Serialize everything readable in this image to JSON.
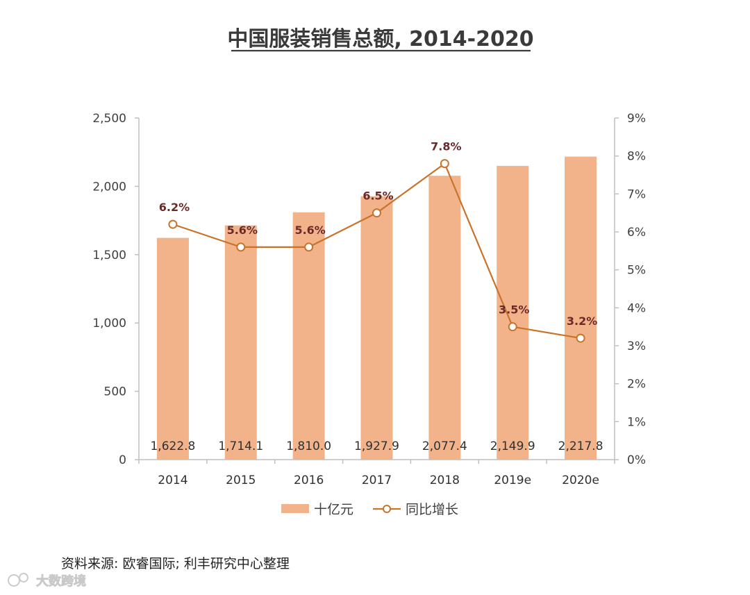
{
  "chart_data": {
    "type": "bar",
    "title": "中国服装销售总额, 2014-2020",
    "categories": [
      "2014",
      "2015",
      "2016",
      "2017",
      "2018",
      "2019e",
      "2020e"
    ],
    "series": [
      {
        "name": "十亿元",
        "type": "bar",
        "axis": "left",
        "values": [
          1622.8,
          1714.1,
          1810.0,
          1927.9,
          2077.4,
          2149.9,
          2217.8
        ],
        "labels": [
          "1,622.8",
          "1,714.1",
          "1,810.0",
          "1,927.9",
          "2,077.4",
          "2,149.9",
          "2,217.8"
        ],
        "color": "#f2b38a"
      },
      {
        "name": "同比增长",
        "type": "line",
        "axis": "right",
        "values": [
          6.2,
          5.6,
          5.6,
          6.5,
          7.8,
          3.5,
          3.2
        ],
        "labels": [
          "6.2%",
          "5.6%",
          "5.6%",
          "6.5%",
          "7.8%",
          "3.5%",
          "3.2%"
        ],
        "color": "#c8732a"
      }
    ],
    "left_axis": {
      "range": [
        0,
        2500
      ],
      "ticks": [
        0,
        500,
        1000,
        1500,
        2000,
        2500
      ],
      "tick_labels": [
        "0",
        "500",
        "1,000",
        "1,500",
        "2,000",
        "2,500"
      ]
    },
    "right_axis": {
      "range": [
        0,
        9
      ],
      "ticks": [
        0,
        1,
        2,
        3,
        4,
        5,
        6,
        7,
        8,
        9
      ],
      "tick_labels": [
        "0%",
        "1%",
        "2%",
        "3%",
        "4%",
        "5%",
        "6%",
        "7%",
        "8%",
        "9%"
      ]
    },
    "grid": false,
    "legend": "bottom",
    "source": "资料来源: 欧睿国际; 利丰研究中心整理"
  },
  "watermark": "大数跨境",
  "colors": {
    "axis": "#bfbfbf",
    "point_label": "#6b2a2a",
    "text": "#404040"
  }
}
